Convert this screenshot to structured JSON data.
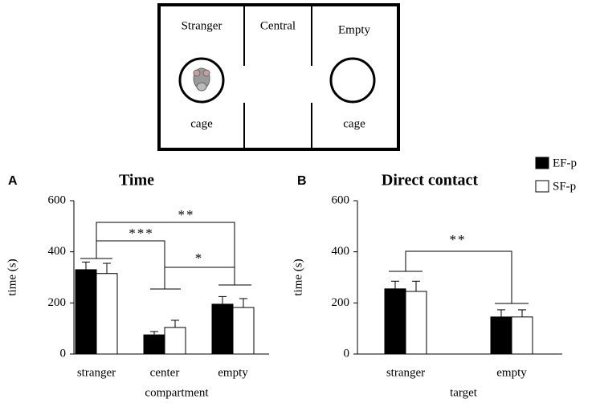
{
  "diagram": {
    "labels": [
      "Stranger",
      "Central",
      "Empty",
      "cage",
      "cage"
    ]
  },
  "chart_data": [
    {
      "type": "bar",
      "panel": "A",
      "title": "Time",
      "xlabel": "compartment",
      "ylabel": "time (s)",
      "categories": [
        "stranger",
        "center",
        "empty"
      ],
      "series": [
        {
          "name": "EF-p",
          "color": "#000000",
          "values": [
            330,
            75,
            195
          ],
          "errors": [
            30,
            13,
            30
          ]
        },
        {
          "name": "SF-p",
          "color": "#ffffff",
          "values": [
            315,
            104,
            182
          ],
          "errors": [
            40,
            28,
            35
          ]
        }
      ],
      "ylim": [
        0,
        600
      ],
      "yticks": [
        0,
        200,
        400,
        600
      ],
      "annotations": [
        "***",
        "**",
        "*"
      ]
    },
    {
      "type": "bar",
      "panel": "B",
      "title": "Direct contact",
      "xlabel": "target",
      "ylabel": "time (s)",
      "categories": [
        "stranger",
        "empty"
      ],
      "series": [
        {
          "color": "#000000",
          "values": [
            255,
            145
          ],
          "errors": [
            30,
            28
          ]
        },
        {
          "color": "#ffffff",
          "values": [
            245,
            145
          ],
          "errors": [
            40,
            28
          ]
        }
      ],
      "ylim": [
        0,
        600
      ],
      "yticks": [
        0,
        200,
        400,
        600
      ],
      "annotations": [
        "**"
      ]
    }
  ]
}
